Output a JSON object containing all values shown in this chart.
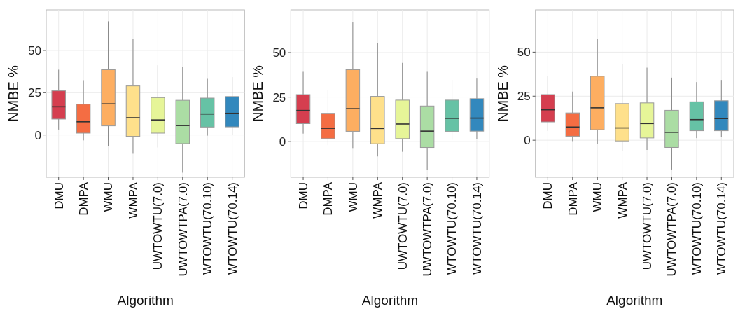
{
  "chart_data": [
    {
      "type": "box",
      "xlabel": "Algorithm",
      "ylabel": "NMBE %",
      "categories": [
        "DMU",
        "DMPA",
        "WMU",
        "WMPA",
        "UWTOWTU(7.0)",
        "UWTOWTPA(7.0)",
        "WTOWTU(70.10)",
        "WTOWTU(70.14)"
      ],
      "colors": [
        "#d53e4f",
        "#f46d43",
        "#fdae61",
        "#fee08b",
        "#e6f598",
        "#abdda4",
        "#66c2a5",
        "#3288bd"
      ],
      "ylim": [
        -25,
        74
      ],
      "yticks": [
        0,
        25,
        50
      ],
      "grid": true,
      "boxes": [
        {
          "low": 3.2,
          "q1": 9.4,
          "median": 16.7,
          "q3": 26.1,
          "high": 38.6
        },
        {
          "low": -3.2,
          "q1": 1.1,
          "median": 7.8,
          "q3": 18.2,
          "high": 32.4
        },
        {
          "low": -6.6,
          "q1": 5.4,
          "median": 18.4,
          "q3": 38.6,
          "high": 67.2
        },
        {
          "low": -11.1,
          "q1": -0.8,
          "median": 10.2,
          "q3": 29,
          "high": 56.9
        },
        {
          "low": -7.4,
          "q1": 1.1,
          "median": 8.9,
          "q3": 22.1,
          "high": 41.2
        },
        {
          "low": -22.3,
          "q1": -5.1,
          "median": 5.6,
          "q3": 20.5,
          "high": 40.3
        },
        {
          "low": -0.4,
          "q1": 4.7,
          "median": 12.4,
          "q3": 21.8,
          "high": 33.2
        },
        {
          "low": 0,
          "q1": 4.8,
          "median": 12.8,
          "q3": 22.7,
          "high": 34.2
        }
      ]
    },
    {
      "type": "box",
      "xlabel": "Algorithm",
      "ylabel": "NMBE %",
      "categories": [
        "DMU",
        "DMPA",
        "WMU",
        "WMPA",
        "UWTOWTU(7.0)",
        "UWTOWTPA(7.0)",
        "WTOWTU(70.10)",
        "WTOWTU(70.14)"
      ],
      "colors": [
        "#d53e4f",
        "#f46d43",
        "#fdae61",
        "#fee08b",
        "#e6f598",
        "#abdda4",
        "#66c2a5",
        "#3288bd"
      ],
      "ylim": [
        -20,
        74
      ],
      "yticks": [
        0,
        25,
        50
      ],
      "grid": true,
      "boxes": [
        {
          "low": 4.5,
          "q1": 10.1,
          "median": 17.5,
          "q3": 26.4,
          "high": 39.2
        },
        {
          "low": -2,
          "q1": 1.7,
          "median": 7.5,
          "q3": 15.9,
          "high": 29.1
        },
        {
          "low": -3.6,
          "q1": 5.8,
          "median": 18.5,
          "q3": 40.4,
          "high": 66.9
        },
        {
          "low": -8.3,
          "q1": -1.2,
          "median": 7.4,
          "q3": 25.4,
          "high": 55.2
        },
        {
          "low": -5.7,
          "q1": 1.7,
          "median": 9.9,
          "q3": 23.3,
          "high": 44.2
        },
        {
          "low": -15.7,
          "q1": -3.3,
          "median": 5.9,
          "q3": 20,
          "high": 39.2
        },
        {
          "low": 1,
          "q1": 5.7,
          "median": 13.1,
          "q3": 23.3,
          "high": 34.7
        },
        {
          "low": 1.3,
          "q1": 5.9,
          "median": 13.2,
          "q3": 24.1,
          "high": 35.4
        }
      ]
    },
    {
      "type": "box",
      "xlabel": "Algorithm",
      "ylabel": "NMBE %",
      "categories": [
        "DMU",
        "DMPA",
        "WMU",
        "WMPA",
        "UWTOWTU(7.0)",
        "UWTOWTPA(7.0)",
        "WTOWTU(70.10)",
        "WTOWTU(70.14)"
      ],
      "colors": [
        "#d53e4f",
        "#f46d43",
        "#fdae61",
        "#fee08b",
        "#e6f598",
        "#abdda4",
        "#66c2a5",
        "#3288bd"
      ],
      "ylim": [
        -21,
        74
      ],
      "yticks": [
        0,
        25,
        50
      ],
      "grid": true,
      "boxes": [
        {
          "low": 5.3,
          "q1": 10.4,
          "median": 17.3,
          "q3": 25.9,
          "high": 36.3
        },
        {
          "low": -0.5,
          "q1": 2.3,
          "median": 7.5,
          "q3": 15.5,
          "high": 27.6
        },
        {
          "low": -2.3,
          "q1": 6,
          "median": 18.4,
          "q3": 36.3,
          "high": 57.5
        },
        {
          "low": -6,
          "q1": -0.4,
          "median": 7,
          "q3": 20.8,
          "high": 43.3
        },
        {
          "low": -5.5,
          "q1": 1.3,
          "median": 9.5,
          "q3": 21.2,
          "high": 41.2
        },
        {
          "low": -16.6,
          "q1": -4.1,
          "median": 4.5,
          "q3": 17,
          "high": 35.5
        },
        {
          "low": 1.2,
          "q1": 5.4,
          "median": 11.7,
          "q3": 21.8,
          "high": 33
        },
        {
          "low": 1.7,
          "q1": 5.4,
          "median": 12.3,
          "q3": 22.4,
          "high": 34.2
        }
      ]
    }
  ]
}
